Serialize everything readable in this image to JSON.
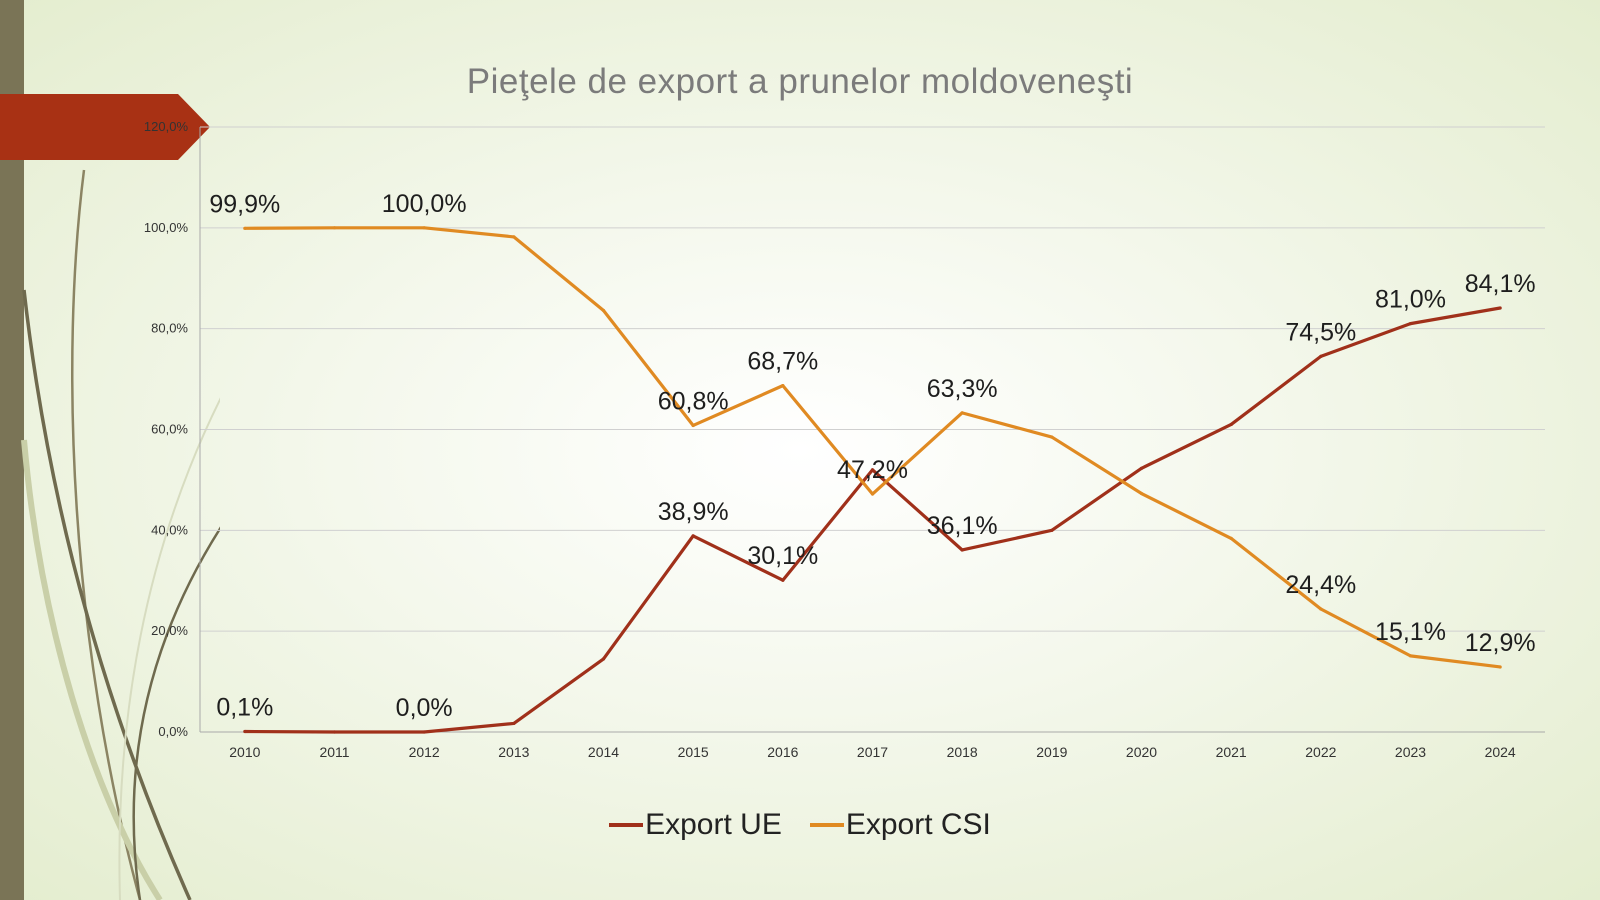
{
  "chart_data": {
    "type": "line",
    "title": "Pieţele de export a prunelor moldoveneşti",
    "categories": [
      "2010",
      "2011",
      "2012",
      "2013",
      "2014",
      "2015",
      "2016",
      "2017",
      "2018",
      "2019",
      "2020",
      "2021",
      "2022",
      "2023",
      "2024"
    ],
    "y_ticks": [
      "0,0%",
      "20,0%",
      "40,0%",
      "60,0%",
      "80,0%",
      "100,0%",
      "120,0%"
    ],
    "ylim": [
      0,
      120
    ],
    "grid": true,
    "legend_position": "bottom",
    "series": [
      {
        "name": "Export UE",
        "color": "#a0301a",
        "values": [
          0.1,
          0.0,
          0.0,
          1.7,
          14.5,
          38.9,
          30.1,
          52.0,
          36.1,
          40.0,
          52.3,
          61.0,
          74.5,
          81.0,
          84.1
        ],
        "labels": [
          "0,1%",
          "",
          "0,0%",
          "",
          "",
          "38,9%",
          "30,1%",
          "",
          "36,1%",
          "",
          "",
          "",
          "74,5%",
          "81,0%",
          "84,1%"
        ]
      },
      {
        "name": "Export CSI",
        "color": "#e08a22",
        "values": [
          99.9,
          100.0,
          100.0,
          98.2,
          83.6,
          60.8,
          68.7,
          47.2,
          63.3,
          58.5,
          47.3,
          38.4,
          24.4,
          15.1,
          12.9
        ],
        "labels": [
          "99,9%",
          "",
          "100,0%",
          "",
          "",
          "60,8%",
          "68,7%",
          "47,2%",
          "63,3%",
          "",
          "",
          "",
          "24,4%",
          "15,1%",
          "12,9%"
        ]
      }
    ]
  }
}
